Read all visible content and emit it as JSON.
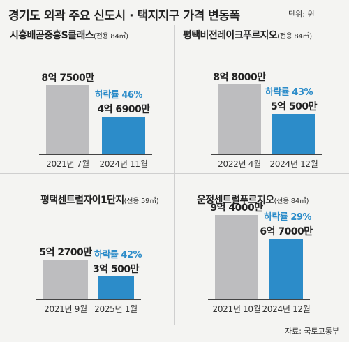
{
  "title": "경기도 외곽 주요 신도시 · 택지지구 가격 변동폭",
  "unit": "단위: 원",
  "source": "자료: 국토교통부",
  "colors": {
    "before": "#bdbdbf",
    "after": "#2c8cc9"
  },
  "chart_data": [
    {
      "type": "bar",
      "name": "시흥배곧중흥S클래스",
      "area": "(전용 84㎡)",
      "categories": [
        "2021년 7월",
        "2024년 11월"
      ],
      "values": [
        875000000,
        469000000
      ],
      "value_labels": [
        "8억 7500만",
        "4억 6900만"
      ],
      "rate_label": "하락률 46%",
      "ylim": [
        0,
        1000000000
      ]
    },
    {
      "type": "bar",
      "name": "평택비전레이크푸르지오",
      "area": "(전용 84㎡)",
      "categories": [
        "2022년 4월",
        "2024년 12월"
      ],
      "values": [
        880000000,
        505000000
      ],
      "value_labels": [
        "8억 8000만",
        "5억 500만"
      ],
      "rate_label": "하락률 43%",
      "ylim": [
        0,
        1000000000
      ]
    },
    {
      "type": "bar",
      "name": "평택센트럴자이1단지",
      "area": "(전용 59㎡)",
      "categories": [
        "2021년 9월",
        "2025년 1월"
      ],
      "values": [
        527000000,
        305000000
      ],
      "value_labels": [
        "5억 2700만",
        "3억 500만"
      ],
      "rate_label": "하락률 42%",
      "ylim": [
        0,
        1000000000
      ]
    },
    {
      "type": "bar",
      "name": "운정센트럴푸르지오",
      "area": "(전용 84㎡)",
      "categories": [
        "2021년 10월",
        "2024년 12월"
      ],
      "values": [
        940000000,
        670000000
      ],
      "value_labels": [
        "9억 4000만",
        "6억 7000만"
      ],
      "rate_label": "하락률 29%",
      "ylim": [
        0,
        1000000000
      ]
    }
  ]
}
